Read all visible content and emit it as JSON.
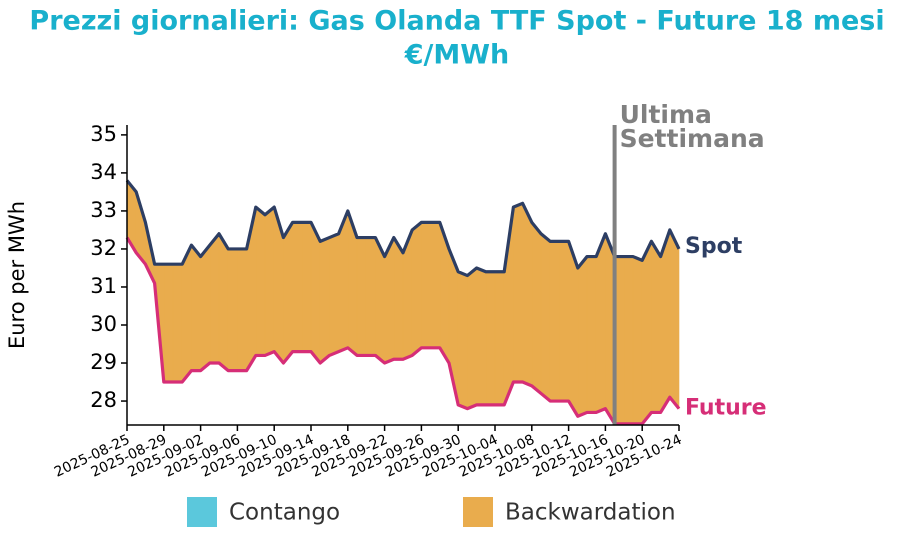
{
  "chart_data": {
    "type": "line",
    "title": [
      "Prezzi giornalieri: Gas Olanda TTF Spot - Future 18 mesi",
      "€/MWh"
    ],
    "ylabel": "Euro per MWh",
    "x": [
      "2025-08-25",
      "2025-08-26",
      "2025-08-27",
      "2025-08-28",
      "2025-08-29",
      "2025-08-30",
      "2025-08-31",
      "2025-09-01",
      "2025-09-02",
      "2025-09-03",
      "2025-09-04",
      "2025-09-05",
      "2025-09-06",
      "2025-09-07",
      "2025-09-08",
      "2025-09-09",
      "2025-09-10",
      "2025-09-11",
      "2025-09-12",
      "2025-09-13",
      "2025-09-14",
      "2025-09-15",
      "2025-09-16",
      "2025-09-17",
      "2025-09-18",
      "2025-09-19",
      "2025-09-20",
      "2025-09-21",
      "2025-09-22",
      "2025-09-23",
      "2025-09-24",
      "2025-09-25",
      "2025-09-26",
      "2025-09-27",
      "2025-09-28",
      "2025-09-29",
      "2025-09-30",
      "2025-10-01",
      "2025-10-02",
      "2025-10-03",
      "2025-10-04",
      "2025-10-05",
      "2025-10-06",
      "2025-10-07",
      "2025-10-08",
      "2025-10-09",
      "2025-10-10",
      "2025-10-11",
      "2025-10-12",
      "2025-10-13",
      "2025-10-14",
      "2025-10-15",
      "2025-10-16",
      "2025-10-17",
      "2025-10-18",
      "2025-10-19",
      "2025-10-20",
      "2025-10-21",
      "2025-10-22",
      "2025-10-23",
      "2025-10-24"
    ],
    "series": [
      {
        "name": "Spot",
        "color": "#2d3e63",
        "values": [
          33.8,
          33.5,
          32.7,
          31.6,
          31.6,
          31.6,
          31.6,
          32.1,
          31.8,
          32.1,
          32.4,
          32.0,
          32.0,
          32.0,
          33.1,
          32.9,
          33.1,
          32.3,
          32.7,
          32.7,
          32.7,
          32.2,
          32.3,
          32.4,
          33.0,
          32.3,
          32.3,
          32.3,
          31.8,
          32.3,
          31.9,
          32.5,
          32.7,
          32.7,
          32.7,
          32.0,
          31.4,
          31.3,
          31.5,
          31.4,
          31.4,
          31.4,
          33.1,
          33.2,
          32.7,
          32.4,
          32.2,
          32.2,
          32.2,
          31.5,
          31.8,
          31.8,
          32.4,
          31.8,
          31.8,
          31.8,
          31.7,
          32.2,
          31.8,
          32.5,
          32.0
        ]
      },
      {
        "name": "Future",
        "color": "#d62e77",
        "values": [
          32.3,
          31.9,
          31.6,
          31.1,
          28.5,
          28.5,
          28.5,
          28.8,
          28.8,
          29.0,
          29.0,
          28.8,
          28.8,
          28.8,
          29.2,
          29.2,
          29.3,
          29.0,
          29.3,
          29.3,
          29.3,
          29.0,
          29.2,
          29.3,
          29.4,
          29.2,
          29.2,
          29.2,
          29.0,
          29.1,
          29.1,
          29.2,
          29.4,
          29.4,
          29.4,
          29.0,
          27.9,
          27.8,
          27.9,
          27.9,
          27.9,
          27.9,
          28.5,
          28.5,
          28.4,
          28.2,
          28.0,
          28.0,
          28.0,
          27.6,
          27.7,
          27.7,
          27.8,
          27.4,
          27.4,
          27.4,
          27.4,
          27.7,
          27.7,
          28.1,
          27.8
        ]
      }
    ],
    "fill_legend": [
      {
        "name": "Contango",
        "color": "#5bc8dc"
      },
      {
        "name": "Backwardation",
        "color": "#e9ac4d"
      }
    ],
    "vline": {
      "x": "2025-10-17",
      "label": [
        "Ultima",
        "Settimana"
      ],
      "color": "#808080"
    },
    "xlim": [
      "2025-08-25",
      "2025-10-24"
    ],
    "xticks": [
      "2025-08-25",
      "2025-08-29",
      "2025-09-02",
      "2025-09-06",
      "2025-09-10",
      "2025-09-14",
      "2025-09-18",
      "2025-09-22",
      "2025-09-26",
      "2025-09-30",
      "2025-10-04",
      "2025-10-08",
      "2025-10-12",
      "2025-10-16",
      "2025-10-20",
      "2025-10-24"
    ],
    "ylim": [
      27.37,
      35.26
    ],
    "yticks": [
      28,
      29,
      30,
      31,
      32,
      33,
      34,
      35
    ]
  }
}
